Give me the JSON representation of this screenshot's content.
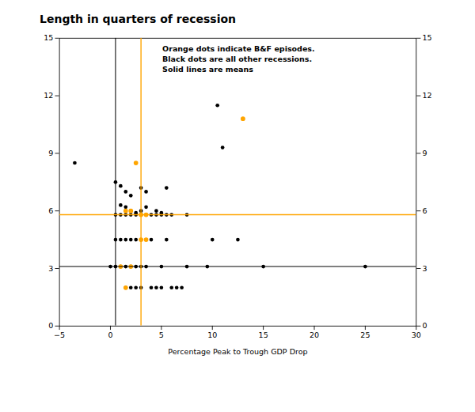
{
  "chart_data": {
    "type": "scatter",
    "title": "Length in quarters of recession",
    "xlabel": "Percentage Peak to Trough GDP Drop",
    "annotation": "Orange dots indicate B&F episodes.\nBlack dots are all other recessions.\nSolid lines are means",
    "xlim": [
      -5,
      30
    ],
    "ylim": [
      0,
      15
    ],
    "xticks": [
      -5,
      0,
      5,
      10,
      15,
      20,
      25,
      30
    ],
    "yticks": [
      0,
      3,
      6,
      9,
      12,
      15
    ],
    "y2lim": [
      0,
      15
    ],
    "y2ticks": [
      0,
      3,
      6,
      9,
      12,
      15
    ],
    "grid": false,
    "series": [
      {
        "color": "#000000",
        "mean_x": 0.5,
        "mean_y": 3.1,
        "values": [
          [
            -3.5,
            8.5
          ],
          [
            0.5,
            7.5
          ],
          [
            1.0,
            7.3
          ],
          [
            1.5,
            7.0
          ],
          [
            2.0,
            6.8
          ],
          [
            3.0,
            7.2
          ],
          [
            3.5,
            7.0
          ],
          [
            5.5,
            7.2
          ],
          [
            1.0,
            6.3
          ],
          [
            1.5,
            6.2
          ],
          [
            2.0,
            6.0
          ],
          [
            2.5,
            5.9
          ],
          [
            3.0,
            6.0
          ],
          [
            3.5,
            6.2
          ],
          [
            4.5,
            6.0
          ],
          [
            5.0,
            5.9
          ],
          [
            0.5,
            5.8
          ],
          [
            1.0,
            5.8
          ],
          [
            1.5,
            5.8
          ],
          [
            2.0,
            5.8
          ],
          [
            2.5,
            5.8
          ],
          [
            3.0,
            5.8
          ],
          [
            3.5,
            5.8
          ],
          [
            4.0,
            5.8
          ],
          [
            4.5,
            5.8
          ],
          [
            5.0,
            5.8
          ],
          [
            5.5,
            5.8
          ],
          [
            6.0,
            5.8
          ],
          [
            7.5,
            5.8
          ],
          [
            0.5,
            4.5
          ],
          [
            1.0,
            4.5
          ],
          [
            1.5,
            4.5
          ],
          [
            2.0,
            4.5
          ],
          [
            2.5,
            4.5
          ],
          [
            3.0,
            4.5
          ],
          [
            4.0,
            4.5
          ],
          [
            5.5,
            4.5
          ],
          [
            10.0,
            4.5
          ],
          [
            12.5,
            4.5
          ],
          [
            0.0,
            3.1
          ],
          [
            0.5,
            3.1
          ],
          [
            1.0,
            3.1
          ],
          [
            1.5,
            3.1
          ],
          [
            2.0,
            3.1
          ],
          [
            2.5,
            3.1
          ],
          [
            3.0,
            3.1
          ],
          [
            3.5,
            3.1
          ],
          [
            5.0,
            3.1
          ],
          [
            7.5,
            3.1
          ],
          [
            9.5,
            3.1
          ],
          [
            15.0,
            3.1
          ],
          [
            25.0,
            3.1
          ],
          [
            1.5,
            2.0
          ],
          [
            2.0,
            2.0
          ],
          [
            2.5,
            2.0
          ],
          [
            3.0,
            2.0
          ],
          [
            4.0,
            2.0
          ],
          [
            4.5,
            2.0
          ],
          [
            5.0,
            2.0
          ],
          [
            6.0,
            2.0
          ],
          [
            6.5,
            2.0
          ],
          [
            7.0,
            2.0
          ],
          [
            10.5,
            11.5
          ],
          [
            11.0,
            9.3
          ],
          [
            13.0,
            10.8
          ]
        ]
      },
      {
        "color": "#FFA500",
        "mean_x": 3.0,
        "mean_y": 5.8,
        "values": [
          [
            2.5,
            8.5
          ],
          [
            1.5,
            6.0
          ],
          [
            2.0,
            6.0
          ],
          [
            3.0,
            5.8
          ],
          [
            3.5,
            5.8
          ],
          [
            3.0,
            4.5
          ],
          [
            3.5,
            4.5
          ],
          [
            1.0,
            3.1
          ],
          [
            2.0,
            3.1
          ],
          [
            1.5,
            2.0
          ],
          [
            13.0,
            10.8
          ]
        ]
      }
    ]
  }
}
